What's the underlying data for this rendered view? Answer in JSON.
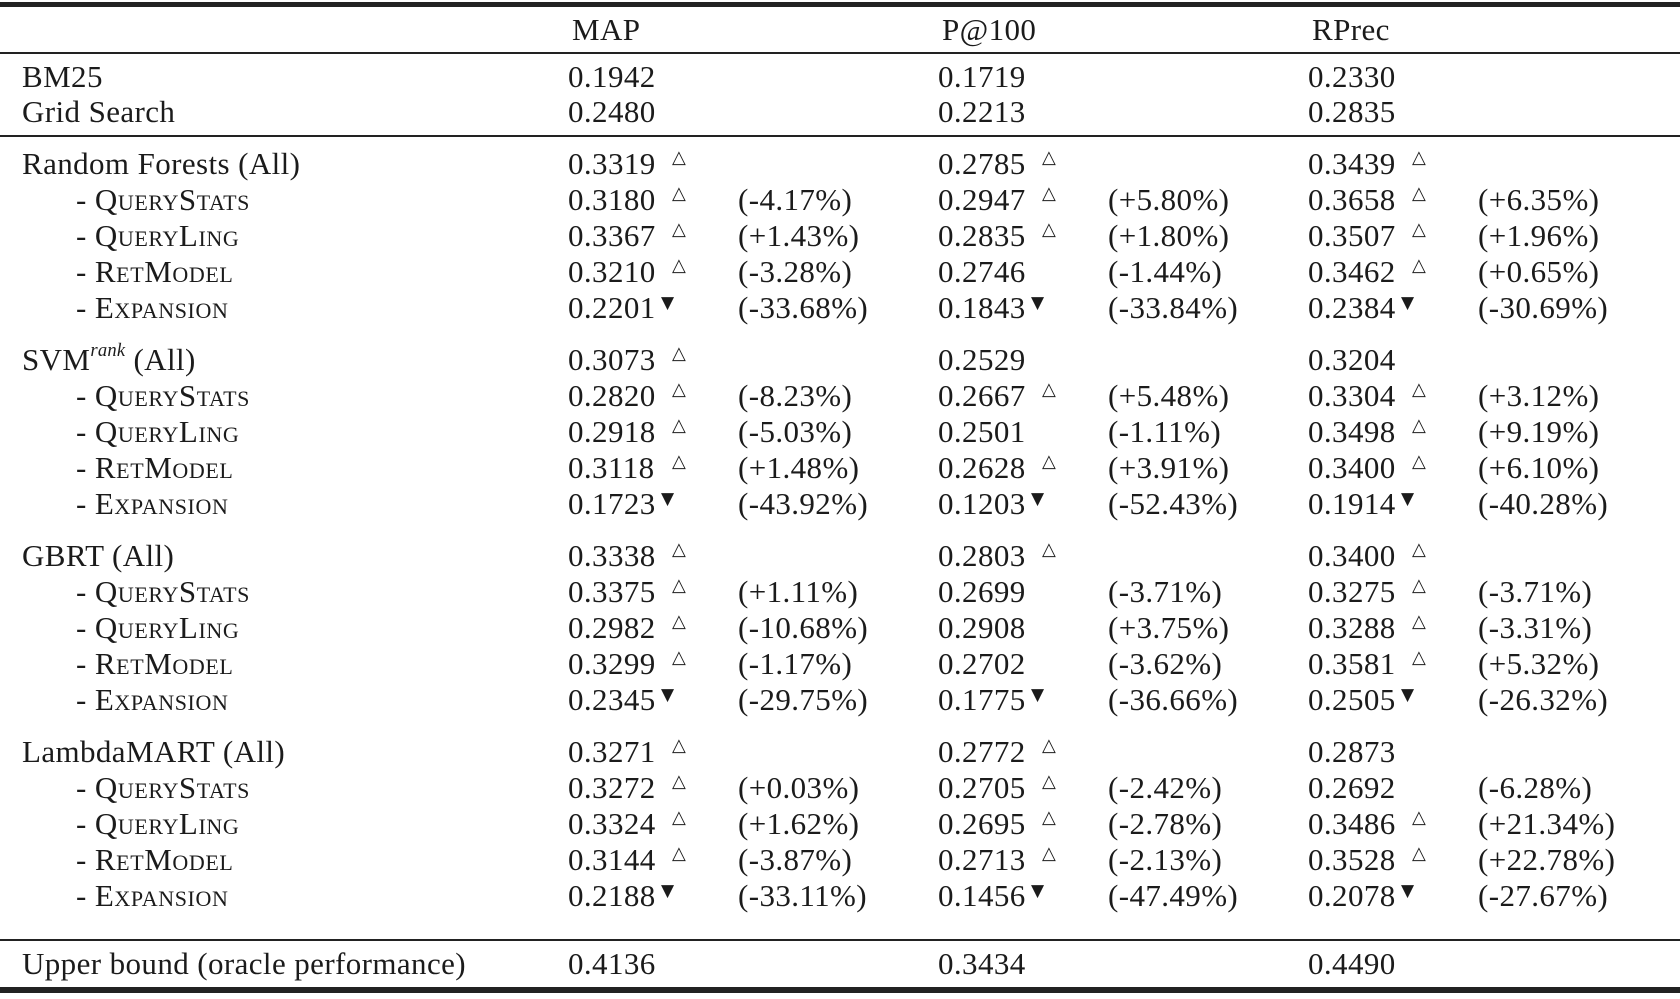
{
  "page": {
    "background": "#ffffff",
    "text_color": "#1b1b1b",
    "rule_color": "#222222"
  },
  "table": {
    "column_headers": [
      "MAP",
      "P@100",
      "RPrec"
    ],
    "marker_glyphs": {
      "up": "△",
      "down": "▼"
    },
    "baseline_rows": [
      {
        "key": "bm25",
        "label": "BM25",
        "cells": [
          {
            "v": "0.1942",
            "m": "",
            "p": ""
          },
          {
            "v": "0.1719",
            "m": "",
            "p": ""
          },
          {
            "v": "0.2330",
            "m": "",
            "p": ""
          }
        ]
      },
      {
        "key": "grid-search",
        "label": "Grid Search",
        "cells": [
          {
            "v": "0.2480",
            "m": "",
            "p": ""
          },
          {
            "v": "0.2213",
            "m": "",
            "p": ""
          },
          {
            "v": "0.2835",
            "m": "",
            "p": ""
          }
        ]
      }
    ],
    "groups": [
      {
        "key": "random-forests",
        "header": {
          "main": "Random Forests (All)",
          "sup": "",
          "tail": "",
          "cells": [
            {
              "v": "0.3319",
              "m": "up",
              "p": ""
            },
            {
              "v": "0.2785",
              "m": "up",
              "p": ""
            },
            {
              "v": "0.3439",
              "m": "up",
              "p": ""
            }
          ]
        },
        "rows": [
          {
            "key": "querystats",
            "label": "QueryStats",
            "cells": [
              {
                "v": "0.3180",
                "m": "up",
                "p": "(-4.17%)"
              },
              {
                "v": "0.2947",
                "m": "up",
                "p": "(+5.80%)"
              },
              {
                "v": "0.3658",
                "m": "up",
                "p": "(+6.35%)"
              }
            ]
          },
          {
            "key": "queryling",
            "label": "QueryLing",
            "cells": [
              {
                "v": "0.3367",
                "m": "up",
                "p": "(+1.43%)"
              },
              {
                "v": "0.2835",
                "m": "up",
                "p": "(+1.80%)"
              },
              {
                "v": "0.3507",
                "m": "up",
                "p": "(+1.96%)"
              }
            ]
          },
          {
            "key": "retmodel",
            "label": "RetModel",
            "cells": [
              {
                "v": "0.3210",
                "m": "up",
                "p": "(-3.28%)"
              },
              {
                "v": "0.2746",
                "m": "",
                "p": "(-1.44%)"
              },
              {
                "v": "0.3462",
                "m": "up",
                "p": "(+0.65%)"
              }
            ]
          },
          {
            "key": "expansion",
            "label": "Expansion",
            "cells": [
              {
                "v": "0.2201",
                "m": "down",
                "p": "(-33.68%)"
              },
              {
                "v": "0.1843",
                "m": "down",
                "p": "(-33.84%)"
              },
              {
                "v": "0.2384",
                "m": "down",
                "p": "(-30.69%)"
              }
            ]
          }
        ]
      },
      {
        "key": "svm-rank",
        "header": {
          "main": "SVM",
          "sup": "rank",
          "tail": " (All)",
          "cells": [
            {
              "v": "0.3073",
              "m": "up",
              "p": ""
            },
            {
              "v": "0.2529",
              "m": "",
              "p": ""
            },
            {
              "v": "0.3204",
              "m": "",
              "p": ""
            }
          ]
        },
        "rows": [
          {
            "key": "querystats",
            "label": "QueryStats",
            "cells": [
              {
                "v": "0.2820",
                "m": "up",
                "p": "(-8.23%)"
              },
              {
                "v": "0.2667",
                "m": "up",
                "p": "(+5.48%)"
              },
              {
                "v": "0.3304",
                "m": "up",
                "p": "(+3.12%)"
              }
            ]
          },
          {
            "key": "queryling",
            "label": "QueryLing",
            "cells": [
              {
                "v": "0.2918",
                "m": "up",
                "p": "(-5.03%)"
              },
              {
                "v": "0.2501",
                "m": "",
                "p": "(-1.11%)"
              },
              {
                "v": "0.3498",
                "m": "up",
                "p": "(+9.19%)"
              }
            ]
          },
          {
            "key": "retmodel",
            "label": "RetModel",
            "cells": [
              {
                "v": "0.3118",
                "m": "up",
                "p": "(+1.48%)"
              },
              {
                "v": "0.2628",
                "m": "up",
                "p": "(+3.91%)"
              },
              {
                "v": "0.3400",
                "m": "up",
                "p": "(+6.10%)"
              }
            ]
          },
          {
            "key": "expansion",
            "label": "Expansion",
            "cells": [
              {
                "v": "0.1723",
                "m": "down",
                "p": "(-43.92%)"
              },
              {
                "v": "0.1203",
                "m": "down",
                "p": "(-52.43%)"
              },
              {
                "v": "0.1914",
                "m": "down",
                "p": "(-40.28%)"
              }
            ]
          }
        ]
      },
      {
        "key": "gbrt",
        "header": {
          "main": "GBRT (All)",
          "sup": "",
          "tail": "",
          "cells": [
            {
              "v": "0.3338",
              "m": "up",
              "p": ""
            },
            {
              "v": "0.2803",
              "m": "up",
              "p": ""
            },
            {
              "v": "0.3400",
              "m": "up",
              "p": ""
            }
          ]
        },
        "rows": [
          {
            "key": "querystats",
            "label": "QueryStats",
            "cells": [
              {
                "v": "0.3375",
                "m": "up",
                "p": "(+1.11%)"
              },
              {
                "v": "0.2699",
                "m": "",
                "p": "(-3.71%)"
              },
              {
                "v": "0.3275",
                "m": "up",
                "p": "(-3.71%)"
              }
            ]
          },
          {
            "key": "queryling",
            "label": "QueryLing",
            "cells": [
              {
                "v": "0.2982",
                "m": "up",
                "p": "(-10.68%)"
              },
              {
                "v": "0.2908",
                "m": "",
                "p": "(+3.75%)"
              },
              {
                "v": "0.3288",
                "m": "up",
                "p": "(-3.31%)"
              }
            ]
          },
          {
            "key": "retmodel",
            "label": "RetModel",
            "cells": [
              {
                "v": "0.3299",
                "m": "up",
                "p": "(-1.17%)"
              },
              {
                "v": "0.2702",
                "m": "",
                "p": "(-3.62%)"
              },
              {
                "v": "0.3581",
                "m": "up",
                "p": "(+5.32%)"
              }
            ]
          },
          {
            "key": "expansion",
            "label": "Expansion",
            "cells": [
              {
                "v": "0.2345",
                "m": "down",
                "p": "(-29.75%)"
              },
              {
                "v": "0.1775",
                "m": "down",
                "p": "(-36.66%)"
              },
              {
                "v": "0.2505",
                "m": "down",
                "p": "(-26.32%)"
              }
            ]
          }
        ]
      },
      {
        "key": "lambdamart",
        "header": {
          "main": "LambdaMART (All)",
          "sup": "",
          "tail": "",
          "cells": [
            {
              "v": "0.3271",
              "m": "up",
              "p": ""
            },
            {
              "v": "0.2772",
              "m": "up",
              "p": ""
            },
            {
              "v": "0.2873",
              "m": "",
              "p": ""
            }
          ]
        },
        "rows": [
          {
            "key": "querystats",
            "label": "QueryStats",
            "cells": [
              {
                "v": "0.3272",
                "m": "up",
                "p": "(+0.03%)"
              },
              {
                "v": "0.2705",
                "m": "up",
                "p": "(-2.42%)"
              },
              {
                "v": "0.2692",
                "m": "",
                "p": "(-6.28%)"
              }
            ]
          },
          {
            "key": "queryling",
            "label": "QueryLing",
            "cells": [
              {
                "v": "0.3324",
                "m": "up",
                "p": "(+1.62%)"
              },
              {
                "v": "0.2695",
                "m": "up",
                "p": "(-2.78%)"
              },
              {
                "v": "0.3486",
                "m": "up",
                "p": "(+21.34%)"
              }
            ]
          },
          {
            "key": "retmodel",
            "label": "RetModel",
            "cells": [
              {
                "v": "0.3144",
                "m": "up",
                "p": "(-3.87%)"
              },
              {
                "v": "0.2713",
                "m": "up",
                "p": "(-2.13%)"
              },
              {
                "v": "0.3528",
                "m": "up",
                "p": "(+22.78%)"
              }
            ]
          },
          {
            "key": "expansion",
            "label": "Expansion",
            "cells": [
              {
                "v": "0.2188",
                "m": "down",
                "p": "(-33.11%)"
              },
              {
                "v": "0.1456",
                "m": "down",
                "p": "(-47.49%)"
              },
              {
                "v": "0.2078",
                "m": "down",
                "p": "(-27.67%)"
              }
            ]
          }
        ]
      }
    ],
    "upper_bound": {
      "label": "Upper bound (oracle performance)",
      "values": [
        "0.4136",
        "0.3434",
        "0.4490"
      ]
    }
  }
}
